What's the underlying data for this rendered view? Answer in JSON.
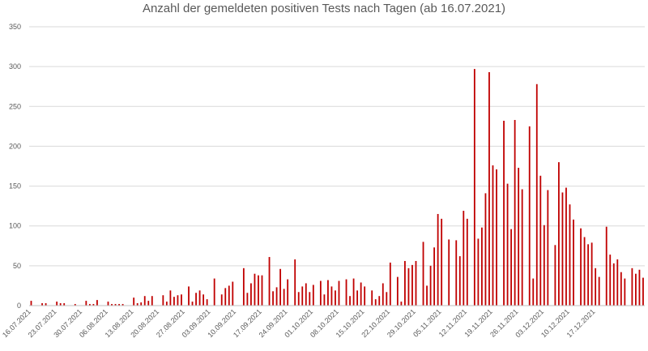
{
  "chart_data": {
    "type": "bar",
    "title": "Anzahl der gemeldeten positiven Tests nach Tagen (ab 16.07.2021)",
    "xlabel": "",
    "ylabel": "",
    "ylim": [
      0,
      350
    ],
    "yticks": [
      0,
      50,
      100,
      150,
      200,
      250,
      300,
      350
    ],
    "grid": true,
    "bar_color": "#c00000",
    "x_tick_labels": [
      "16.07.2021",
      "23.07.2021",
      "30.07.2021",
      "06.08.2021",
      "13.08.2021",
      "20.08.2021",
      "27.08.2021",
      "03.09.2021",
      "10.09.2021",
      "17.09.2021",
      "24.09.2021",
      "01.10.2021",
      "08.10.2021",
      "15.10.2021",
      "22.10.2021",
      "29.10.2021",
      "05.11.2021",
      "12.11.2021",
      "19.11.2021",
      "26.11.2021",
      "03.12.2021",
      "10.12.2021",
      "17.12.2021"
    ],
    "values": [
      6,
      0,
      0,
      3,
      3,
      0,
      0,
      5,
      3,
      3,
      0,
      0,
      2,
      0,
      0,
      6,
      2,
      2,
      7,
      0,
      0,
      5,
      2,
      2,
      2,
      2,
      0,
      0,
      10,
      3,
      4,
      12,
      6,
      12,
      0,
      0,
      13,
      5,
      19,
      11,
      13,
      14,
      0,
      24,
      5,
      16,
      19,
      14,
      8,
      0,
      34,
      0,
      14,
      22,
      25,
      30,
      0,
      0,
      47,
      16,
      28,
      40,
      38,
      38,
      0,
      61,
      18,
      23,
      46,
      21,
      33,
      0,
      58,
      17,
      24,
      28,
      17,
      26,
      0,
      31,
      14,
      32,
      24,
      19,
      31,
      0,
      33,
      12,
      34,
      19,
      29,
      24,
      0,
      19,
      8,
      12,
      28,
      17,
      54,
      0,
      36,
      5,
      56,
      47,
      51,
      56,
      0,
      80,
      25,
      50,
      73,
      115,
      109,
      0,
      83,
      0,
      82,
      62,
      119,
      109,
      0,
      297,
      84,
      98,
      141,
      293,
      176,
      171,
      0,
      232,
      153,
      96,
      233,
      173,
      146,
      0,
      225,
      34,
      278,
      163,
      101,
      145,
      0,
      76,
      180,
      142,
      148,
      127,
      108,
      0,
      97,
      86,
      77,
      79,
      47,
      36,
      0,
      99,
      64,
      53,
      58,
      42,
      34,
      0,
      47,
      40,
      45,
      35
    ]
  }
}
